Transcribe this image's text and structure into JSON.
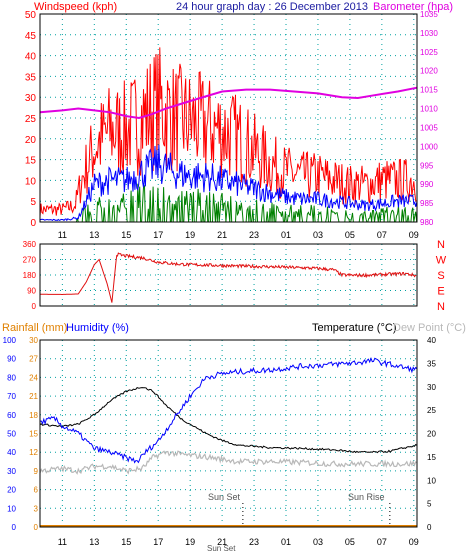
{
  "colors": {
    "wind": "#ff0000",
    "wind_dir": "#e01010",
    "gust_avg": "#0000ff",
    "wind_avg": "#008000",
    "barometer": "#e000e0",
    "humidity": "#0000ff",
    "rainfall": "#e08000",
    "temperature": "#000000",
    "dew_point": "#b8b8b8",
    "left_axis": "#ff0000",
    "grid": "#00a0a0",
    "dir_axis": "#ff0000"
  },
  "header": {
    "windspeed_label": "Windspeed (kph)",
    "graph_title": "24 hour graph day : 26 December 2013",
    "barometer_label": "Barometer (hpa)"
  },
  "panel3_header": {
    "rainfall_label": "Rainfall (mm)",
    "humidity_label": "Humidity (%)",
    "temperature_label": "Temperature (°C)",
    "dew_point_label": "Dew Point (°C)"
  },
  "annotations": {
    "sunset": "Sun Set",
    "sunrise": "Sun Rise",
    "sunset_axis": "Sun Set"
  },
  "chart_data": [
    {
      "type": "line",
      "x_label_hours": [
        "11",
        "13",
        "15",
        "17",
        "19",
        "21",
        "23",
        "01",
        "03",
        "05",
        "07",
        "09"
      ],
      "x_range_hours": [
        9.6,
        33.2
      ],
      "left_axis": {
        "ticks": [
          0,
          5,
          10,
          15,
          20,
          25,
          30,
          35,
          40,
          45,
          50
        ],
        "ylim": [
          0,
          50
        ]
      },
      "right_axis": {
        "ticks": [
          980,
          985,
          990,
          995,
          1000,
          1005,
          1010,
          1015,
          1020,
          1025,
          1030,
          1035
        ],
        "ylim": [
          980,
          1035
        ]
      },
      "series": [
        {
          "key": "barometer",
          "axis": "right",
          "points": [
            [
              9.6,
              1009
            ],
            [
              11,
              1009.5
            ],
            [
              12,
              1010
            ],
            [
              13,
              1009.5
            ],
            [
              14,
              1009
            ],
            [
              15,
              1008
            ],
            [
              15.8,
              1007.5
            ],
            [
              16.6,
              1008.5
            ],
            [
              17.5,
              1010
            ],
            [
              19,
              1012
            ],
            [
              21,
              1014.5
            ],
            [
              22.5,
              1015
            ],
            [
              24,
              1015
            ],
            [
              25.5,
              1014.5
            ],
            [
              27,
              1014
            ],
            [
              28.5,
              1013
            ],
            [
              29.5,
              1012.8
            ],
            [
              30.5,
              1013.5
            ],
            [
              32,
              1014.5
            ],
            [
              33.2,
              1015.5
            ]
          ]
        },
        {
          "key": "wind",
          "axis": "left",
          "kind": "gust",
          "env": [
            [
              9.6,
              3
            ],
            [
              11,
              3
            ],
            [
              11.8,
              4
            ],
            [
              12.2,
              10
            ],
            [
              13,
              18
            ],
            [
              14,
              22
            ],
            [
              15,
              22
            ],
            [
              16,
              25
            ],
            [
              17,
              28
            ],
            [
              18,
              25
            ],
            [
              19,
              24
            ],
            [
              20,
              23
            ],
            [
              21,
              22
            ],
            [
              22,
              20
            ],
            [
              23,
              17
            ],
            [
              24,
              14
            ],
            [
              25,
              12
            ],
            [
              26,
              11
            ],
            [
              27,
              11
            ],
            [
              28,
              10
            ],
            [
              29,
              9
            ],
            [
              30,
              9
            ],
            [
              31,
              10
            ],
            [
              32,
              10
            ],
            [
              33.2,
              10
            ]
          ]
        },
        {
          "key": "gust_avg",
          "axis": "left",
          "kind": "avg",
          "env": [
            [
              9.6,
              0.5
            ],
            [
              11,
              0.5
            ],
            [
              12,
              1
            ],
            [
              12.5,
              5
            ],
            [
              13,
              9
            ],
            [
              14,
              10
            ],
            [
              15,
              10
            ],
            [
              16,
              12
            ],
            [
              17,
              14
            ],
            [
              18,
              12
            ],
            [
              19,
              11
            ],
            [
              20,
              11
            ],
            [
              21,
              10
            ],
            [
              22,
              9
            ],
            [
              23,
              8
            ],
            [
              24,
              7
            ],
            [
              25,
              6
            ],
            [
              26,
              5.5
            ],
            [
              27,
              5.5
            ],
            [
              28,
              5
            ],
            [
              29,
              4.5
            ],
            [
              30,
              4
            ],
            [
              31,
              4.5
            ],
            [
              32,
              5
            ],
            [
              33.2,
              5
            ]
          ]
        },
        {
          "key": "wind_avg",
          "axis": "left",
          "kind": "bar",
          "env": [
            [
              9.6,
              0
            ],
            [
              11.8,
              0
            ],
            [
              12.2,
              2
            ],
            [
              13,
              5
            ],
            [
              14,
              5.5
            ],
            [
              15,
              5.5
            ],
            [
              16,
              7
            ],
            [
              17,
              8
            ],
            [
              18,
              6
            ],
            [
              19,
              6
            ],
            [
              20,
              5.5
            ],
            [
              21,
              5
            ],
            [
              22,
              4.5
            ],
            [
              23,
              4
            ],
            [
              24,
              3.5
            ],
            [
              25,
              3
            ],
            [
              26,
              3
            ],
            [
              27,
              3
            ],
            [
              28,
              2.5
            ],
            [
              29,
              2
            ],
            [
              30,
              2
            ],
            [
              31,
              2.5
            ],
            [
              32,
              3
            ],
            [
              33.2,
              3
            ]
          ]
        }
      ]
    },
    {
      "type": "line",
      "title_ticks": [
        "360",
        "270",
        "180",
        "90",
        "0"
      ],
      "compass": [
        "N",
        "W",
        "S",
        "E",
        "N"
      ],
      "ylim": [
        0,
        360
      ],
      "series": [
        {
          "key": "wind_dir",
          "points": [
            [
              9.6,
              68
            ],
            [
              11,
              67
            ],
            [
              12,
              70
            ],
            [
              12.5,
              140
            ],
            [
              13,
              240
            ],
            [
              13.3,
              270
            ],
            [
              13.8,
              130
            ],
            [
              14.1,
              20
            ],
            [
              14.4,
              300
            ],
            [
              15,
              290
            ],
            [
              16,
              280
            ],
            [
              17,
              255
            ],
            [
              18,
              245
            ],
            [
              19,
              240
            ],
            [
              20,
              238
            ],
            [
              21,
              235
            ],
            [
              22,
              232
            ],
            [
              23,
              230
            ],
            [
              24,
              228
            ],
            [
              25,
              225
            ],
            [
              26,
              222
            ],
            [
              27,
              218
            ],
            [
              28,
              210
            ],
            [
              28.5,
              180
            ],
            [
              29.5,
              178
            ],
            [
              30.5,
              180
            ],
            [
              31.5,
              185
            ],
            [
              32.5,
              188
            ],
            [
              33.2,
              175
            ]
          ]
        }
      ]
    },
    {
      "type": "line",
      "humidity_ticks": [
        0,
        10,
        20,
        30,
        40,
        50,
        60,
        70,
        80,
        90,
        100
      ],
      "rain_ticks": [
        0,
        3,
        6,
        9,
        12,
        15,
        18,
        21,
        24,
        27,
        30
      ],
      "temp_ticks": [
        0,
        5,
        10,
        15,
        20,
        25,
        30,
        35,
        40
      ],
      "humidity_ylim": [
        0,
        100
      ],
      "temp_ylim": [
        0,
        40
      ],
      "series": [
        {
          "key": "humidity",
          "axis": "humidity",
          "points": [
            [
              9.6,
              56
            ],
            [
              10.5,
              58
            ],
            [
              11,
              54
            ],
            [
              12,
              50
            ],
            [
              13,
              42
            ],
            [
              14,
              40
            ],
            [
              15,
              37
            ],
            [
              15.7,
              35
            ],
            [
              16.2,
              40
            ],
            [
              17,
              46
            ],
            [
              18,
              58
            ],
            [
              19,
              70
            ],
            [
              20,
              80
            ],
            [
              21,
              82
            ],
            [
              22,
              83
            ],
            [
              24,
              84
            ],
            [
              26,
              86
            ],
            [
              28,
              87
            ],
            [
              29.5,
              88
            ],
            [
              30.5,
              89
            ],
            [
              31.5,
              87
            ],
            [
              32.5,
              85
            ],
            [
              33.2,
              84
            ]
          ]
        },
        {
          "key": "temperature",
          "axis": "temp",
          "points": [
            [
              9.6,
              22
            ],
            [
              11,
              21.5
            ],
            [
              12,
              22
            ],
            [
              13,
              24
            ],
            [
              14,
              27
            ],
            [
              15,
              29
            ],
            [
              16,
              30
            ],
            [
              16.7,
              29
            ],
            [
              17.5,
              26
            ],
            [
              18.5,
              23
            ],
            [
              20,
              20
            ],
            [
              21,
              18.5
            ],
            [
              22,
              17.5
            ],
            [
              24,
              17
            ],
            [
              26,
              16.8
            ],
            [
              28,
              16.5
            ],
            [
              29.5,
              16
            ],
            [
              30.5,
              16
            ],
            [
              31.5,
              16.2
            ],
            [
              32.5,
              17
            ],
            [
              33.2,
              17.5
            ]
          ]
        },
        {
          "key": "dew_point",
          "axis": "temp",
          "points": [
            [
              9.6,
              12
            ],
            [
              11,
              12.5
            ],
            [
              12,
              12
            ],
            [
              13,
              13
            ],
            [
              14,
              13
            ],
            [
              15,
              12
            ],
            [
              16,
              12.5
            ],
            [
              16.7,
              15
            ],
            [
              17.5,
              16
            ],
            [
              18.5,
              15.5
            ],
            [
              20,
              15
            ],
            [
              21,
              14.5
            ],
            [
              22,
              14
            ],
            [
              24,
              14
            ],
            [
              26,
              13.8
            ],
            [
              28,
              13.5
            ],
            [
              30,
              13.5
            ],
            [
              31.5,
              13.5
            ],
            [
              32.5,
              13.5
            ],
            [
              33.2,
              13.6
            ]
          ]
        },
        {
          "key": "rainfall",
          "axis": "rain",
          "points": [
            [
              9.6,
              0
            ],
            [
              33.2,
              0
            ]
          ]
        }
      ],
      "sunset_hour": 22.3,
      "sunrise_hour": 31.5
    }
  ]
}
